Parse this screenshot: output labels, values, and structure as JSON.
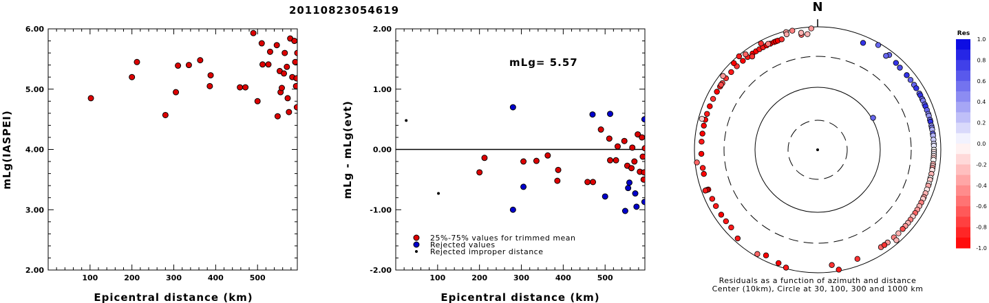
{
  "title": "20110823054619",
  "chart_data": [
    {
      "type": "scatter",
      "xlabel": "Epicentral distance (km)",
      "ylabel": "mLg(IASPEI)",
      "xlim": [
        0,
        595
      ],
      "ylim": [
        2.0,
        6.0
      ],
      "x_ticks": [
        "100",
        "200",
        "300",
        "400",
        "500"
      ],
      "y_ticks": [
        "2.00",
        "3.00",
        "4.00",
        "5.00",
        "6.00"
      ],
      "series": [
        {
          "marker": "red-circle",
          "points": [
            [
              102,
              4.85
            ],
            [
              200,
              5.2
            ],
            [
              212,
              5.45
            ],
            [
              280,
              4.57
            ],
            [
              305,
              4.95
            ],
            [
              310,
              5.39
            ],
            [
              336,
              5.4
            ],
            [
              363,
              5.48
            ],
            [
              386,
              5.05
            ],
            [
              388,
              5.23
            ],
            [
              458,
              5.03
            ],
            [
              471,
              5.03
            ],
            [
              490,
              5.93
            ],
            [
              500,
              4.8
            ],
            [
              510,
              5.76
            ],
            [
              512,
              5.41
            ],
            [
              526,
              5.41
            ],
            [
              530,
              5.62
            ],
            [
              546,
              5.73
            ],
            [
              548,
              4.55
            ],
            [
              553,
              5.3
            ],
            [
              555,
              4.95
            ],
            [
              558,
              5.02
            ],
            [
              563,
              5.26
            ],
            [
              565,
              5.6
            ],
            [
              570,
              5.37
            ],
            [
              572,
              4.85
            ],
            [
              575,
              4.62
            ],
            [
              578,
              5.84
            ],
            [
              583,
              5.2
            ],
            [
              588,
              5.8
            ],
            [
              590,
              5.45
            ],
            [
              592,
              5.05
            ],
            [
              593,
              5.18
            ],
            [
              594,
              4.7
            ],
            [
              595,
              5.6
            ]
          ]
        }
      ]
    },
    {
      "type": "scatter",
      "xlabel": "Epicentral distance (km)",
      "ylabel": "mLg - mLg(evt)",
      "xlim": [
        0,
        595
      ],
      "ylim": [
        -2.0,
        2.0
      ],
      "x_ticks": [
        "100",
        "200",
        "300",
        "400",
        "500"
      ],
      "y_ticks": [
        "-2.00",
        "-1.00",
        "0.00",
        "1.00",
        "2.00"
      ],
      "annotation": "mLg= 5.57",
      "legend_position": "bottom-left",
      "series": [
        {
          "name": "25%-75% values for trimmed mean",
          "color": "#dd0000",
          "points": [
            [
              200,
              -0.38
            ],
            [
              212,
              -0.14
            ],
            [
              305,
              -0.2
            ],
            [
              336,
              -0.19
            ],
            [
              363,
              -0.1
            ],
            [
              386,
              -0.52
            ],
            [
              388,
              -0.34
            ],
            [
              458,
              -0.54
            ],
            [
              471,
              -0.54
            ],
            [
              490,
              0.33
            ],
            [
              510,
              0.18
            ],
            [
              512,
              -0.18
            ],
            [
              526,
              -0.18
            ],
            [
              530,
              0.05
            ],
            [
              546,
              0.14
            ],
            [
              553,
              -0.27
            ],
            [
              563,
              -0.31
            ],
            [
              565,
              0.03
            ],
            [
              570,
              -0.2
            ],
            [
              578,
              0.25
            ],
            [
              583,
              -0.37
            ],
            [
              588,
              0.2
            ],
            [
              590,
              -0.12
            ],
            [
              592,
              -0.5
            ],
            [
              593,
              -0.38
            ],
            [
              595,
              0.02
            ]
          ]
        },
        {
          "name": "Rejected values",
          "color": "#0000cc",
          "points": [
            [
              280,
              0.7
            ],
            [
              280,
              -1.0
            ],
            [
              305,
              -0.62
            ],
            [
              470,
              0.58
            ],
            [
              500,
              -0.78
            ],
            [
              512,
              0.59
            ],
            [
              548,
              -1.02
            ],
            [
              555,
              -0.64
            ],
            [
              558,
              -0.55
            ],
            [
              572,
              -0.73
            ],
            [
              575,
              -0.95
            ],
            [
              594,
              -0.87
            ],
            [
              594,
              0.5
            ]
          ]
        },
        {
          "name": "Rejected improper distance",
          "color": "#000000",
          "points": [
            [
              25,
              0.48
            ],
            [
              102,
              -0.73
            ]
          ]
        }
      ]
    },
    {
      "type": "polar-scatter",
      "north_label": "N",
      "caption_lines": [
        "Residuals as a function of azimuth and distance",
        "Center (10km), Circle at 30, 100, 300 and 1000 km"
      ],
      "rings_km": [
        30,
        100,
        300,
        1000
      ],
      "colorbar": {
        "title": "Res",
        "labels": [
          "1.0",
          "0.8",
          "0.6",
          "0.4",
          "0.2",
          "0.0",
          "-0.2",
          "-0.4",
          "-0.6",
          "-0.8",
          "-1.0"
        ]
      },
      "points_azimuth_distance_residual": [
        [
          23,
          1000,
          0.8
        ],
        [
          42,
          780,
          0.8
        ],
        [
          37,
          840,
          0.6
        ],
        [
          30,
          920,
          0.6
        ],
        [
          36,
          1000,
          0.6
        ],
        [
          45,
          1000,
          0.7
        ],
        [
          50,
          1000,
          0.8
        ],
        [
          53,
          1000,
          0.6
        ],
        [
          56,
          1000,
          0.6
        ],
        [
          58,
          1000,
          0.8
        ],
        [
          61,
          1000,
          0.6
        ],
        [
          62,
          1000,
          0.8
        ],
        [
          64,
          1000,
          0.6
        ],
        [
          65,
          1000,
          0.5
        ],
        [
          67,
          1000,
          0.6
        ],
        [
          68,
          1000,
          0.8
        ],
        [
          70,
          1000,
          0.6
        ],
        [
          72,
          1000,
          0.5
        ],
        [
          73,
          1000,
          0.4
        ],
        [
          75,
          1000,
          0.6
        ],
        [
          76,
          1000,
          0.8
        ],
        [
          78,
          1000,
          0.4
        ],
        [
          79,
          1000,
          0.5
        ],
        [
          80,
          1000,
          0.3
        ],
        [
          82,
          1000,
          0.6
        ],
        [
          83,
          1000,
          0.3
        ],
        [
          85,
          1000,
          0.2
        ],
        [
          87,
          1000,
          0.15
        ],
        [
          88,
          1000,
          0.1
        ],
        [
          90,
          1000,
          0.0
        ],
        [
          91,
          1000,
          -0.1
        ],
        [
          92,
          1000,
          0.05
        ],
        [
          93,
          1000,
          -0.1
        ],
        [
          94,
          1000,
          -0.2
        ],
        [
          95,
          1000,
          0.0
        ],
        [
          97,
          1000,
          -0.3
        ],
        [
          98,
          1000,
          -0.2
        ],
        [
          99,
          1000,
          -0.4
        ],
        [
          100,
          1000,
          -0.1
        ],
        [
          102,
          1000,
          -0.3
        ],
        [
          104,
          1000,
          -0.05
        ],
        [
          105,
          1000,
          -0.2
        ],
        [
          107,
          1000,
          0.0
        ],
        [
          108,
          1000,
          -0.35
        ],
        [
          110,
          1000,
          -0.1
        ],
        [
          112,
          1000,
          -0.3
        ],
        [
          114,
          1000,
          -0.4
        ],
        [
          115,
          1000,
          -0.2
        ],
        [
          117,
          1000,
          -0.5
        ],
        [
          119,
          1000,
          -0.3
        ],
        [
          121,
          1000,
          -0.4
        ],
        [
          123,
          1000,
          -0.6
        ],
        [
          125,
          1000,
          -0.2
        ],
        [
          127,
          1000,
          -0.5
        ],
        [
          129,
          1000,
          -0.3
        ],
        [
          131,
          1000,
          -0.4
        ],
        [
          133,
          1000,
          -0.7
        ],
        [
          136,
          1000,
          -0.3
        ],
        [
          139,
          1000,
          -0.5
        ],
        [
          143,
          1000,
          -0.4
        ],
        [
          147,
          1000,
          -0.6
        ],
        [
          139,
          880,
          -0.3
        ],
        [
          145,
          760,
          -0.8
        ],
        [
          160,
          1000,
          -0.8
        ],
        [
          170,
          950,
          -0.9
        ],
        [
          173,
          1000,
          -0.8
        ],
        [
          195,
          960,
          -0.9
        ],
        [
          199,
          880,
          -1.0
        ],
        [
          206,
          800,
          -1.0
        ],
        [
          210,
          900,
          -0.6
        ],
        [
          222,
          860,
          -0.9
        ],
        [
          228,
          1000,
          -0.9
        ],
        [
          232,
          1000,
          -0.9
        ],
        [
          236,
          1000,
          -1.0
        ],
        [
          241,
          1000,
          -0.9
        ],
        [
          245,
          1000,
          -0.9
        ],
        [
          250,
          1000,
          -1.0
        ],
        [
          258,
          1000,
          -1.0
        ],
        [
          261,
          1000,
          -0.9
        ],
        [
          268,
          1000,
          -1.0
        ],
        [
          274,
          1000,
          -0.9
        ],
        [
          278,
          1000,
          -1.0
        ],
        [
          282,
          1000,
          -1.0
        ],
        [
          285,
          1000,
          -1.0
        ],
        [
          288,
          1000,
          -0.9
        ],
        [
          292,
          1000,
          -1.0
        ],
        [
          296,
          1000,
          -0.8
        ],
        [
          300,
          1000,
          -1.0
        ],
        [
          303,
          1000,
          -0.9
        ],
        [
          305,
          1000,
          -0.7
        ],
        [
          308,
          1000,
          -0.8
        ],
        [
          312,
          1000,
          -0.9
        ],
        [
          316,
          1000,
          -0.8
        ],
        [
          320,
          1000,
          -1.0
        ],
        [
          323,
          1000,
          -0.9
        ],
        [
          326,
          1000,
          -1.0
        ],
        [
          328,
          1000,
          -1.0
        ],
        [
          330,
          1000,
          -0.9
        ],
        [
          332,
          1000,
          -0.9
        ],
        [
          334,
          1000,
          -1.0
        ],
        [
          336,
          1000,
          -1.0
        ],
        [
          338,
          1000,
          -1.0
        ],
        [
          339,
          1000,
          -1.0
        ],
        [
          340,
          1000,
          -1.0
        ],
        [
          342,
          1000,
          -0.8
        ],
        [
          345,
          950,
          -0.4
        ],
        [
          348,
          950,
          -0.5
        ],
        [
          352,
          1000,
          -0.6
        ],
        [
          355,
          1000,
          -0.3
        ],
        [
          357,
          940,
          -0.4
        ],
        [
          332,
          900,
          -0.8
        ],
        [
          323,
          870,
          -0.6
        ],
        [
          320,
          960,
          -0.9
        ],
        [
          316,
          900,
          -1.0
        ],
        [
          308,
          880,
          -0.4
        ],
        [
          304,
          760,
          -0.7
        ],
        [
          285,
          870,
          -0.2
        ],
        [
          264,
          930,
          -0.6
        ],
        [
          250,
          800,
          -1.0
        ],
        [
          250,
          860,
          -0.9
        ],
        [
          345,
          870,
          -0.35
        ],
        [
          352,
          820,
          -0.3
        ],
        [
          335,
          780,
          -0.5
        ],
        [
          325,
          690,
          -0.8
        ],
        [
          60,
          105,
          0.6
        ]
      ]
    }
  ]
}
